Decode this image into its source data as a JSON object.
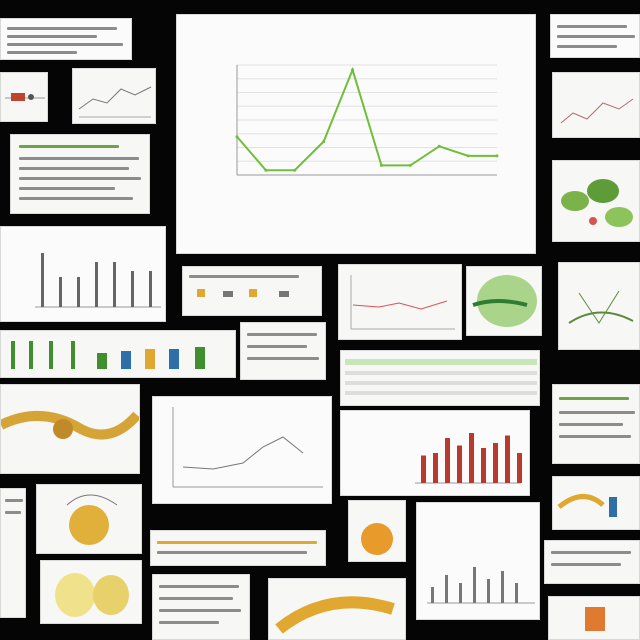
{
  "collage": {
    "main_chart": {
      "title": "",
      "x_title": ""
    }
  },
  "chart_data": [
    {
      "type": "line",
      "title": "",
      "xlabel": "",
      "ylabel": "",
      "series": [
        {
          "values": [
            0.3,
            -0.05,
            -0.05,
            0.25,
            1.0,
            0.0,
            0.0,
            0.2,
            0.1,
            0.1
          ]
        }
      ],
      "grid": true,
      "color": "#6fbf3a"
    },
    {
      "type": "bar",
      "title": "",
      "values": [
        0.55,
        0.6,
        0.9,
        0.75,
        1.0,
        0.7,
        0.8,
        0.95,
        0.6
      ],
      "color": "#b83a2f"
    },
    {
      "type": "bar",
      "title": "",
      "values": [
        0.9,
        0.5,
        0.5,
        0.75,
        0.75,
        0.6,
        0.6
      ],
      "color": "#666666"
    }
  ]
}
